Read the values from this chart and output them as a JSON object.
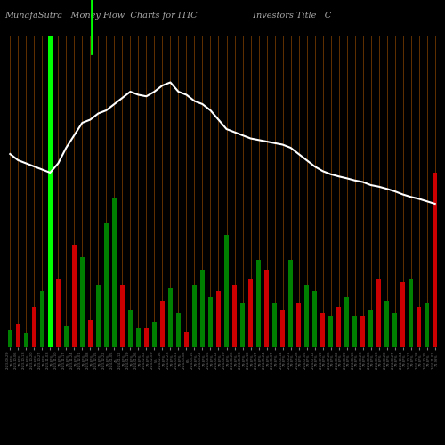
{
  "title": "MunafaSutra   Money Flow  Charts for ITIC                    Investors Title   C",
  "background_color": "#000000",
  "line_color": "#ffffff",
  "grid_color": "#8B4500",
  "bar_colors": [
    "#008000",
    "#cc0000",
    "#008000",
    "#cc0000",
    "#008000",
    "#00ff00",
    "#cc0000",
    "#008000",
    "#cc0000",
    "#008000",
    "#cc0000",
    "#008000",
    "#008000",
    "#008000",
    "#cc0000",
    "#008000",
    "#008000",
    "#cc0000",
    "#008000",
    "#cc0000",
    "#008000",
    "#008000",
    "#cc0000",
    "#008000",
    "#008000",
    "#008000",
    "#cc0000",
    "#008000",
    "#cc0000",
    "#008000",
    "#cc0000",
    "#008000",
    "#cc0000",
    "#008000",
    "#cc0000",
    "#008000",
    "#cc0000",
    "#008000",
    "#008000",
    "#cc0000",
    "#008000",
    "#cc0000",
    "#008000",
    "#008000",
    "#cc0000",
    "#008000",
    "#cc0000",
    "#008000",
    "#008000",
    "#cc0000",
    "#008000",
    "#cc0000",
    "#008000",
    "#cc0000"
  ],
  "bar_values": [
    55,
    75,
    45,
    130,
    180,
    999,
    220,
    70,
    330,
    290,
    85,
    200,
    400,
    480,
    200,
    120,
    60,
    60,
    80,
    150,
    190,
    110,
    50,
    200,
    250,
    160,
    180,
    360,
    200,
    140,
    220,
    280,
    250,
    140,
    120,
    280,
    140,
    200,
    180,
    110,
    100,
    130,
    160,
    100,
    100,
    120,
    220,
    150,
    110,
    210,
    220,
    130,
    140,
    560
  ],
  "line_values": [
    620,
    600,
    590,
    580,
    570,
    560,
    590,
    640,
    680,
    720,
    730,
    750,
    760,
    780,
    800,
    820,
    810,
    805,
    820,
    840,
    850,
    820,
    810,
    790,
    780,
    760,
    730,
    700,
    690,
    680,
    670,
    665,
    660,
    655,
    650,
    640,
    620,
    600,
    580,
    565,
    555,
    548,
    542,
    535,
    530,
    520,
    515,
    508,
    500,
    490,
    482,
    476,
    468,
    460
  ],
  "categories": [
    "2023-09-29\n79.87%",
    "2023-10-06\n79.87%",
    "2023-10-13\n79.87%",
    "2023-10-20\n79.87%",
    "2023-10-27\n79.87%",
    "2023-11-03\n79.87%",
    "2023-11-10\n79.87%",
    "2023-11-17\n79.87%",
    "2023-11-24\n79.87%",
    "2023-12-01\n79.87%",
    "2023-12-08\n79.87%",
    "2023-12-15\n79.87%",
    "2023-12-22\n79.87%",
    "2024-01-05\n4%",
    "2024-01-12\n79.87%",
    "2024-01-19\n79.87%",
    "2024-01-26\n79.87%",
    "2024-02-02\n79.87%",
    "2024-02-09\n5%",
    "2024-02-16\n79.87%",
    "2024-02-23\n79.87%",
    "2024-03-01\n79.87%",
    "2024-03-08\n6%",
    "2024-03-15\n79.87%",
    "2024-03-22\n79.87%",
    "2024-04-05\n79.87%",
    "2024-04-12\n79.87%",
    "2024-04-19\n79.87%",
    "2024-04-26\n79.87%",
    "2024-05-03\n79.87%",
    "2024-05-10\n79.87%",
    "2024-05-17\n79.87%",
    "2024-05-24\n79.87%",
    "2024-06-07\n79.87%",
    "2024-06-14\n79.87%",
    "2024-06-21\n79.87%",
    "2024-06-28\n79.87%",
    "2024-07-05\n79.87%",
    "2024-07-12\n79.87%",
    "2024-07-19\n79.87%",
    "2024-07-26\n79.87%",
    "2024-08-02\n79.87%",
    "2024-08-09\n79.87%",
    "2024-08-16\n79.87%",
    "2024-08-23\n79.87%",
    "2024-09-06\n79.87%",
    "2024-09-13\n79.87%",
    "2024-09-20\n79.87%",
    "2024-09-27\n79.87%",
    "2024-10-04\n79.87%",
    "2024-10-11\n79.87%",
    "2024-10-18\n79.87%",
    "2024-10-25\n79.87%",
    "2024-11-01\n71.98%"
  ],
  "title_fontsize": 7,
  "title_color": "#aaaaaa",
  "ylim_max": 1000,
  "line_scale_max": 1000
}
